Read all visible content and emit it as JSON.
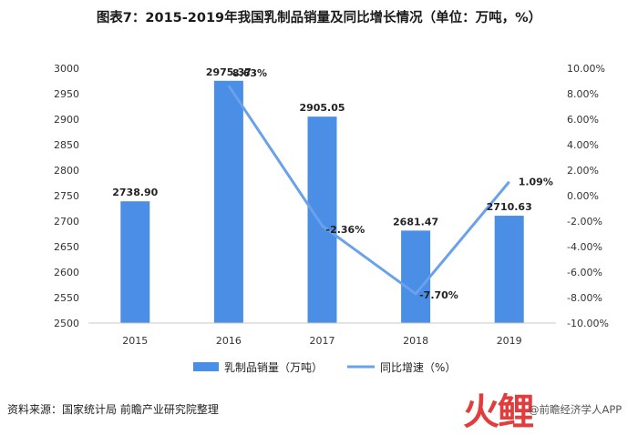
{
  "chart_data": {
    "type": "bar",
    "title": "图表7：2015-2019年我国乳制品销量及同比增长情况（单位：万吨，%）",
    "categories": [
      "2015",
      "2016",
      "2017",
      "2018",
      "2019"
    ],
    "series": [
      {
        "name": "乳制品销量（万吨）",
        "type": "bar",
        "axis": "left",
        "color": "#4a8ee6",
        "values": [
          2738.9,
          2975.37,
          2905.05,
          2681.47,
          2710.63
        ],
        "labels": [
          "2738.90",
          "2975.37",
          "2905.05",
          "2681.47",
          "2710.63"
        ]
      },
      {
        "name": "同比增速（%）",
        "type": "line",
        "axis": "right",
        "color": "#6aa1ec",
        "points": [
          {
            "x": "2016",
            "value": 8.63,
            "label": "8.63%"
          },
          {
            "x": "2017",
            "value": -2.36,
            "label": "-2.36%"
          },
          {
            "x": "2018",
            "value": -7.7,
            "label": "-7.70%"
          },
          {
            "x": "2019",
            "value": 1.09,
            "label": "1.09%"
          }
        ]
      }
    ],
    "y_left": {
      "ylim": [
        2500,
        3000
      ],
      "ticks": [
        "3000",
        "2950",
        "2900",
        "2850",
        "2800",
        "2750",
        "2700",
        "2650",
        "2600",
        "2550",
        "2500"
      ]
    },
    "y_right": {
      "ylim": [
        -10,
        10
      ],
      "ticks": [
        "10.00%",
        "8.00%",
        "6.00%",
        "4.00%",
        "2.00%",
        "0.00%",
        "-2.00%",
        "-4.00%",
        "-6.00%",
        "-8.00%",
        "-10.00%"
      ]
    },
    "grid": false,
    "legend_position": "bottom"
  },
  "footer": {
    "source": "资料来源：国家统计局 前瞻产业研究院整理",
    "brand_mark": "火鲤",
    "brand_name": "@前瞻经济学人APP"
  }
}
